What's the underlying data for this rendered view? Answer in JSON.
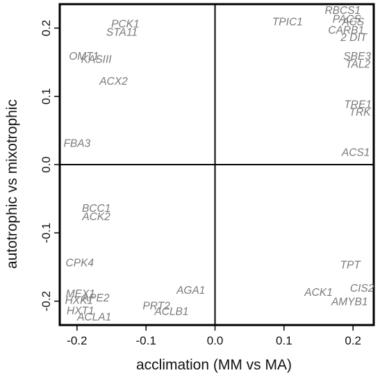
{
  "chart_data": {
    "type": "scatter",
    "title": "",
    "xlabel": "acclimation (MM vs MA)",
    "ylabel": "autotrophic  vs mixotrophic",
    "xlim": [
      -0.225,
      0.23
    ],
    "ylim": [
      -0.235,
      0.235
    ],
    "x_ticks": [
      -0.2,
      -0.1,
      0.0,
      0.1,
      0.2
    ],
    "x_tick_labels": [
      "-0.2",
      "-0.1",
      "0.0",
      "0.1",
      "0.2"
    ],
    "y_ticks": [
      -0.2,
      -0.1,
      0.0,
      0.1,
      0.2
    ],
    "y_tick_labels": [
      "-0.2",
      "-0.1",
      "0.0",
      "0.1",
      "0.2"
    ],
    "reference_lines": {
      "x": 0,
      "y": 0
    },
    "grid": false,
    "label_color": "#7a7a7a",
    "points": [
      {
        "label": "PCK1",
        "x": -0.13,
        "y": 0.205
      },
      {
        "label": "STA11",
        "x": -0.135,
        "y": 0.193
      },
      {
        "label": "OMT1",
        "x": -0.19,
        "y": 0.158
      },
      {
        "label": "KASIII",
        "x": -0.172,
        "y": 0.153
      },
      {
        "label": "ACX2",
        "x": -0.147,
        "y": 0.121
      },
      {
        "label": "FBA3",
        "x": -0.2,
        "y": 0.03
      },
      {
        "label": "BCC1",
        "x": -0.172,
        "y": -0.065
      },
      {
        "label": "ACK2",
        "x": -0.172,
        "y": -0.077
      },
      {
        "label": "CPK4",
        "x": -0.196,
        "y": -0.145
      },
      {
        "label": "MEX1",
        "x": -0.195,
        "y": -0.19
      },
      {
        "label": "HXK1",
        "x": -0.197,
        "y": -0.2
      },
      {
        "label": "APE2",
        "x": -0.173,
        "y": -0.196
      },
      {
        "label": "HXT1",
        "x": -0.195,
        "y": -0.215
      },
      {
        "label": "ACLA1",
        "x": -0.175,
        "y": -0.224
      },
      {
        "label": "AGA1",
        "x": -0.035,
        "y": -0.185
      },
      {
        "label": "PRT2",
        "x": -0.085,
        "y": -0.208
      },
      {
        "label": "ACLB1",
        "x": -0.063,
        "y": -0.216
      },
      {
        "label": "TPIC1",
        "x": 0.105,
        "y": 0.208
      },
      {
        "label": "RBCS1",
        "x": 0.185,
        "y": 0.225
      },
      {
        "label": "PACS",
        "x": 0.191,
        "y": 0.212
      },
      {
        "label": "ACS",
        "x": 0.2,
        "y": 0.208
      },
      {
        "label": "CARB1",
        "x": 0.19,
        "y": 0.196
      },
      {
        "label": "2 DIT",
        "x": 0.201,
        "y": 0.185
      },
      {
        "label": "SBE3",
        "x": 0.206,
        "y": 0.158
      },
      {
        "label": "TAL2",
        "x": 0.207,
        "y": 0.146
      },
      {
        "label": "TRE1",
        "x": 0.207,
        "y": 0.087
      },
      {
        "label": "TRK",
        "x": 0.21,
        "y": 0.076
      },
      {
        "label": "ACS1",
        "x": 0.204,
        "y": 0.017
      },
      {
        "label": "TPT",
        "x": 0.196,
        "y": -0.148
      },
      {
        "label": "CIS2",
        "x": 0.213,
        "y": -0.182
      },
      {
        "label": "ACK1",
        "x": 0.15,
        "y": -0.188
      },
      {
        "label": "AMYB1",
        "x": 0.195,
        "y": -0.202
      }
    ]
  }
}
